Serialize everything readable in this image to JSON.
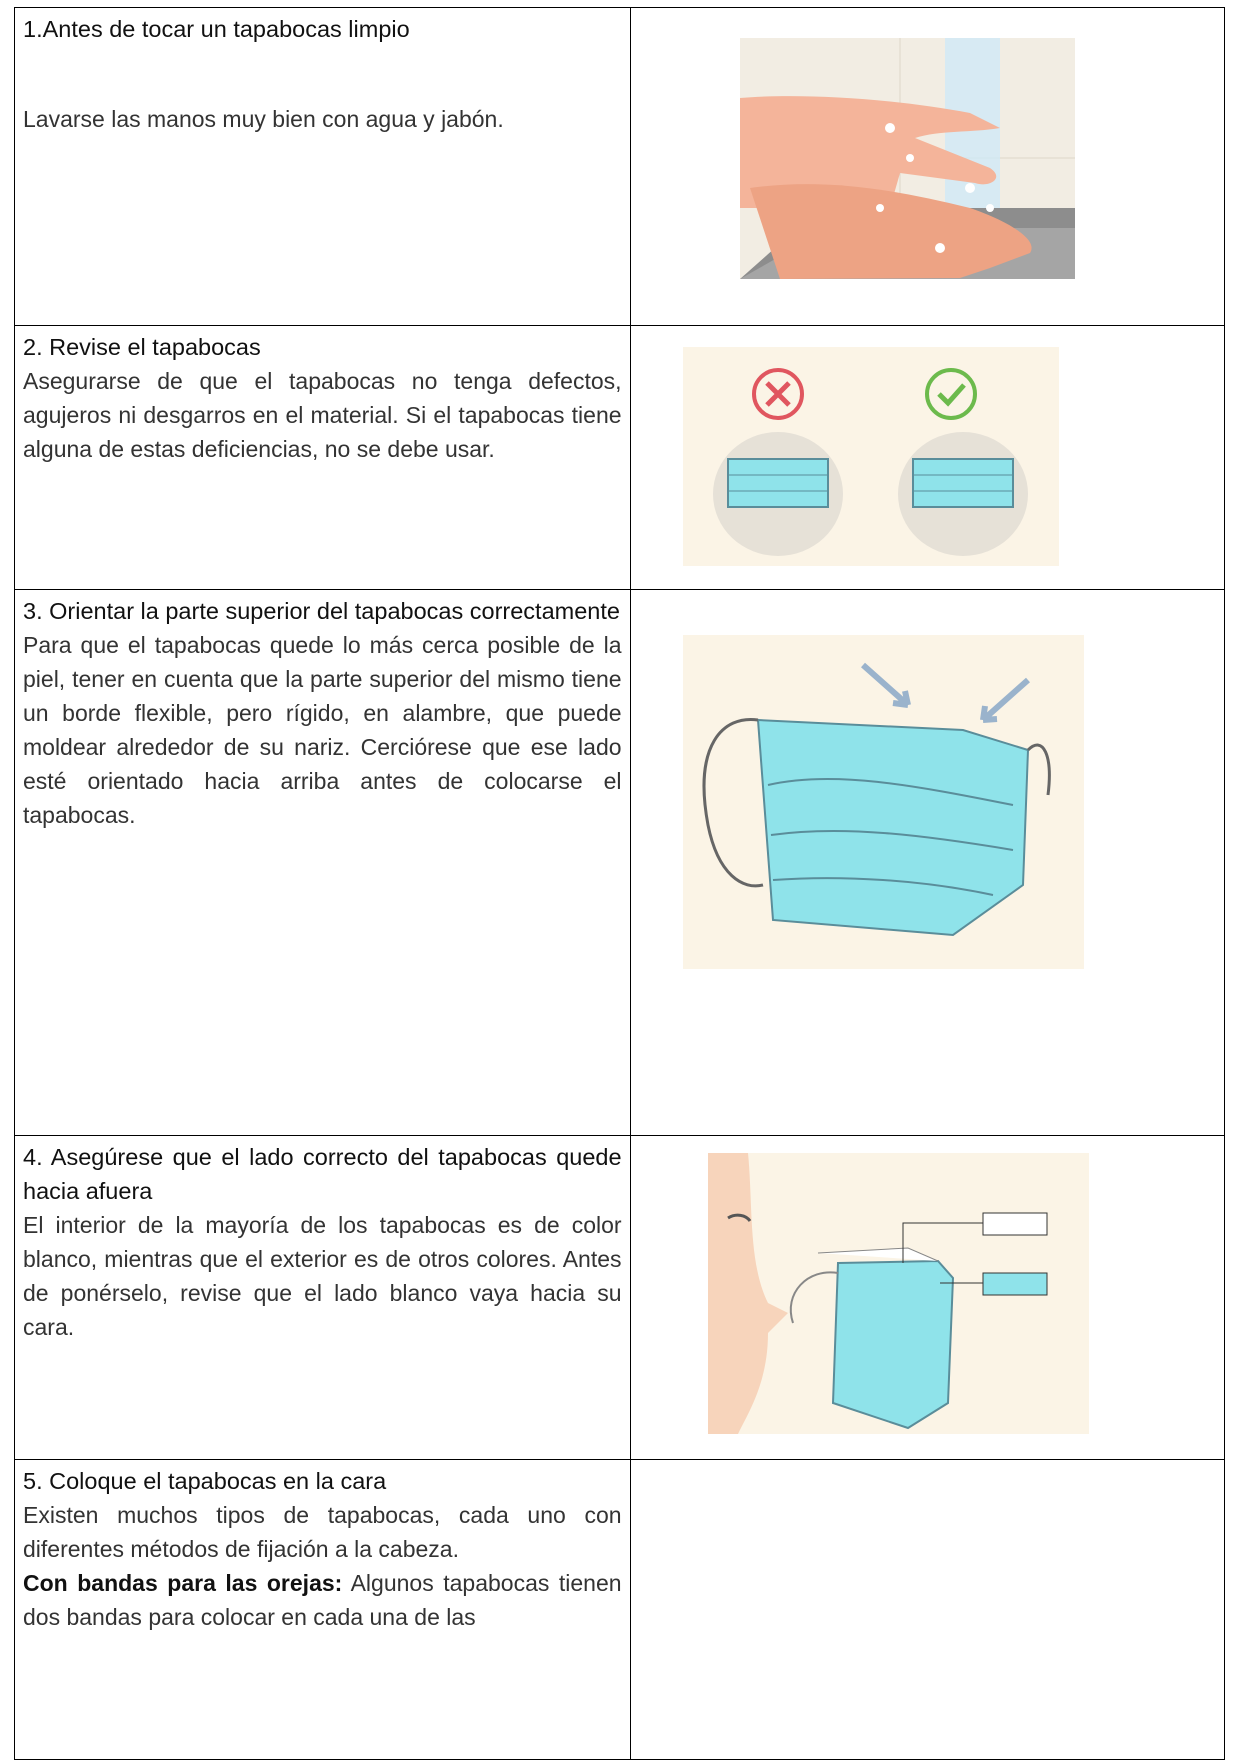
{
  "table": {
    "rows": [
      {
        "title": "1.Antes de tocar un tapabocas limpio",
        "text": [
          "Lavarse las manos muy bien con agua y jabón."
        ]
      },
      {
        "title": "2. Revise el tapabocas",
        "text": [
          "Asegurarse de que el tapabocas no tenga defectos, agujeros ni desgarros en el material. Si el tapabocas tiene alguna de estas deficiencias, no se debe usar."
        ]
      },
      {
        "title": "3. Orientar la parte superior del tapabocas correctamente",
        "text": [
          "Para que el tapabocas quede lo más cerca posible de la piel, tener en cuenta que la parte superior del mismo tiene un borde flexible, pero rígido, en alambre, que puede moldear alrededor de su nariz. Cerciórese que ese lado esté orientado hacia arriba antes de colocarse el tapabocas."
        ]
      },
      {
        "title": "4. Asegúrese que el lado correcto del tapabocas quede hacia afuera",
        "text": [
          "El interior de la mayoría de los tapabocas es de color blanco, mientras que el exterior es de otros colores. Antes de ponérselo, revise que el lado blanco vaya hacia su cara."
        ]
      },
      {
        "title": "5. Coloque el tapabocas en la cara",
        "text": [
          "Existen muchos tipos de tapabocas, cada uno con diferentes métodos de fijación a la cabeza."
        ],
        "note_label": "Con bandas para las orejas:",
        "note_text": "Algunos tapabocas tienen dos bandas para colocar en cada una de las"
      }
    ]
  }
}
